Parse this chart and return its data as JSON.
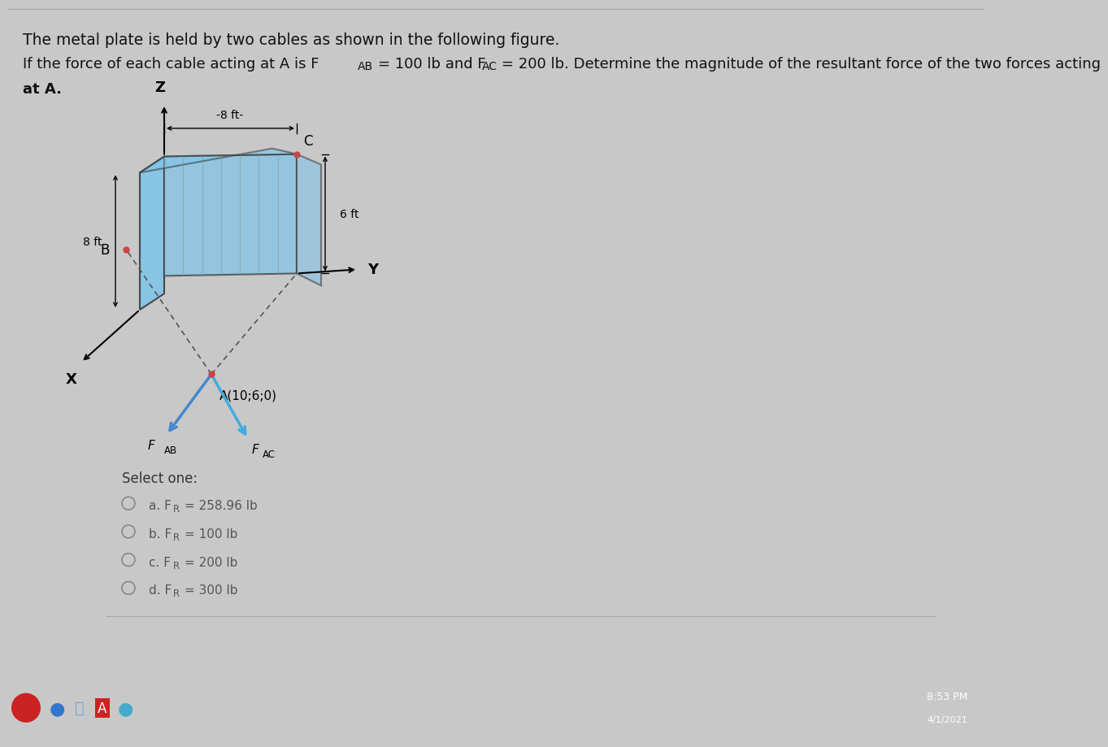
{
  "bg_outer": "#c8c8c8",
  "bg_content": "#e8e8e8",
  "bg_white": "#f2f2f2",
  "plate_color": "#7dc4e8",
  "plate_color_dark": "#5aa8cc",
  "plate_edge": "#333333",
  "title1": "The metal plate is held by two cables as shown in the following figure.",
  "title2a": "If the force of each cable acting at A is F",
  "title2b": "AB",
  "title2c": "= 100 lb and F",
  "title2d": "AC",
  "title2e": "= 200 lb. Determine the magnitude of the resultant force of the two forces acting",
  "title3": "at A.",
  "label_Z": "Z",
  "label_Y": "Y",
  "label_X": "X",
  "label_B": "B",
  "label_C": "C",
  "dim_8ft_h": "-8 ft-",
  "dim_8ft_v": "8 ft",
  "dim_6ft": "6 ft",
  "point_A": "A(10;6;0)",
  "select_one": "Select one:",
  "options": [
    {
      "text": "a. FR= 258.96 lb",
      "selected": false
    },
    {
      "text": "b. FR= 100 lb",
      "selected": false
    },
    {
      "text": "c. FR= 200 lb",
      "selected": false
    },
    {
      "text": "d. FR= 300 lb",
      "selected": false
    }
  ],
  "taskbar_color": "#1c2a4a",
  "fAB_color": "#4488cc",
  "fAC_color": "#44aadd"
}
